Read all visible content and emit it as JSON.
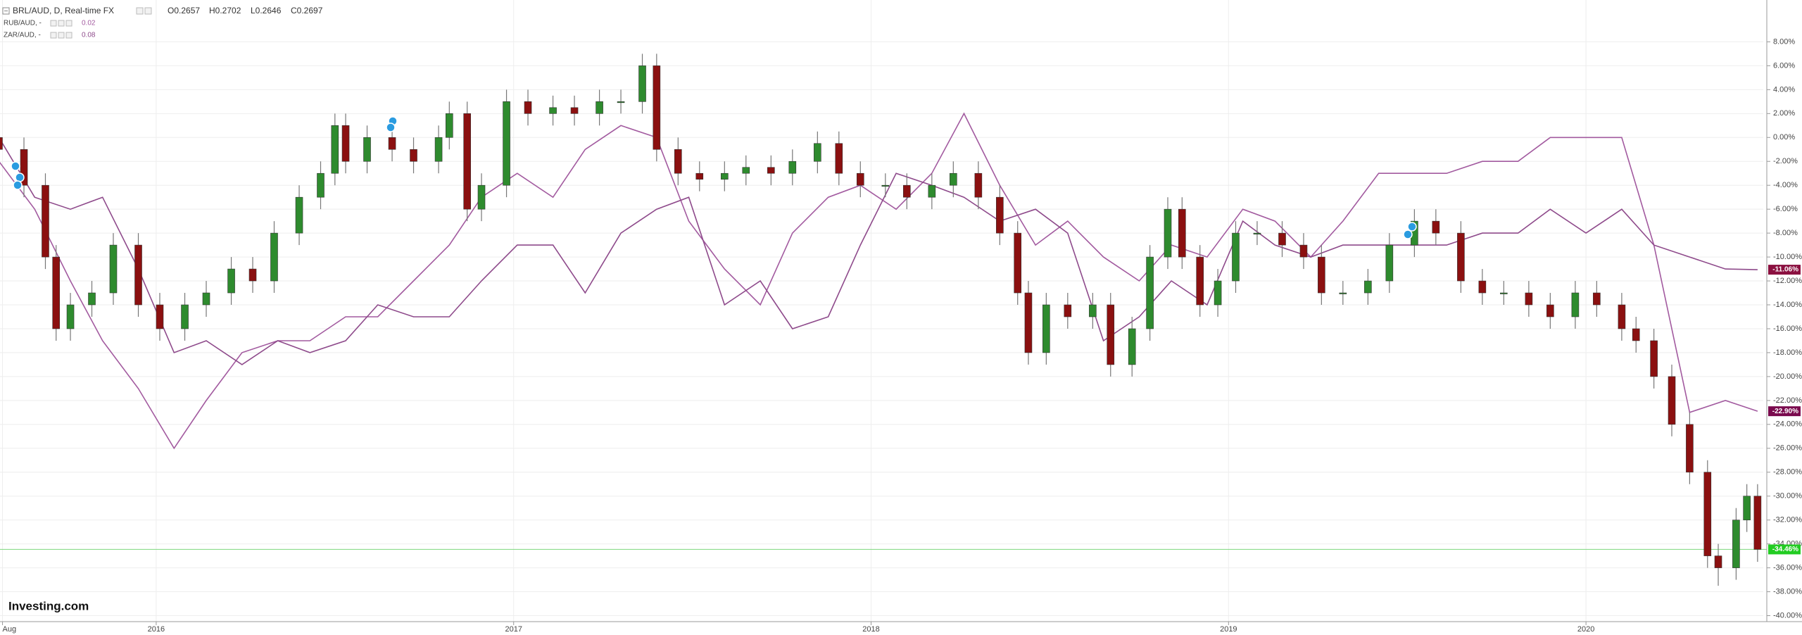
{
  "chart_data": {
    "type": "candlestick",
    "header": {
      "symbol": "BRL/AUD, D, Real-time FX",
      "ohlc": [
        "O0.2657",
        "H0.2702",
        "L0.2646",
        "C0.2697"
      ]
    },
    "brand": "Investing.com",
    "grid": true,
    "xlim": [
      2015.563,
      2020.496
    ],
    "xticks": [
      {
        "value": 2015.57,
        "label": "Aug"
      },
      2016,
      2017,
      2018,
      2019,
      2020
    ],
    "ylim": [
      -40.5,
      11.5
    ],
    "yticks": [
      {
        "value": 8,
        "label": "8.00%"
      },
      {
        "value": 6,
        "label": "6.00%"
      },
      {
        "value": 4,
        "label": "4.00%"
      },
      {
        "value": 2,
        "label": "2.00%"
      },
      {
        "value": 0,
        "label": "0.00%"
      },
      {
        "value": -2,
        "label": "-2.00%"
      },
      {
        "value": -4,
        "label": "-4.00%"
      },
      {
        "value": -6,
        "label": "-6.00%"
      },
      {
        "value": -8,
        "label": "-8.00%"
      },
      {
        "value": -10,
        "label": "-10.00%"
      },
      {
        "value": -12,
        "label": "-12.00%"
      },
      {
        "value": -14,
        "label": "-14.00%"
      },
      {
        "value": -16,
        "label": "-16.00%"
      },
      {
        "value": -18,
        "label": "-18.00%"
      },
      {
        "value": -20,
        "label": "-20.00%"
      },
      {
        "value": -22,
        "label": "-22.00%"
      },
      {
        "value": -24,
        "label": "-24.00%"
      },
      {
        "value": -26,
        "label": "-26.00%"
      },
      {
        "value": -28,
        "label": "-28.00%"
      },
      {
        "value": -30,
        "label": "-30.00%"
      },
      {
        "value": -32,
        "label": "-32.00%"
      },
      {
        "value": -34,
        "label": "-34.00%"
      },
      {
        "value": -36,
        "label": "-36.00%"
      },
      {
        "value": -38,
        "label": "-38.00%"
      },
      {
        "value": -40,
        "label": "-40.00%"
      }
    ],
    "candles": {
      "up_color": "#2e8b2e",
      "down_color": "#8b1010",
      "price_label": "-34.46%",
      "price_label_color": "#22cc22",
      "x": [
        2015.56,
        2015.63,
        2015.69,
        2015.72,
        2015.76,
        2015.82,
        2015.88,
        2015.95,
        2016.01,
        2016.08,
        2016.14,
        2016.21,
        2016.27,
        2016.33,
        2016.4,
        2016.46,
        2016.5,
        2016.53,
        2016.59,
        2016.66,
        2016.72,
        2016.79,
        2016.82,
        2016.87,
        2016.91,
        2016.98,
        2017.04,
        2017.11,
        2017.17,
        2017.24,
        2017.3,
        2017.36,
        2017.4,
        2017.46,
        2017.52,
        2017.59,
        2017.65,
        2017.72,
        2017.78,
        2017.85,
        2017.91,
        2017.97,
        2018.04,
        2018.1,
        2018.17,
        2018.23,
        2018.3,
        2018.36,
        2018.41,
        2018.44,
        2018.49,
        2018.55,
        2018.62,
        2018.67,
        2018.73,
        2018.78,
        2018.83,
        2018.87,
        2018.92,
        2018.97,
        2019.02,
        2019.08,
        2019.15,
        2019.21,
        2019.26,
        2019.32,
        2019.39,
        2019.45,
        2019.52,
        2019.58,
        2019.65,
        2019.71,
        2019.77,
        2019.84,
        2019.9,
        2019.97,
        2020.03,
        2020.1,
        2020.14,
        2020.19,
        2020.24,
        2020.29,
        2020.34,
        2020.37,
        2020.42,
        2020.45,
        2020.48
      ],
      "open": [
        0,
        -1,
        -4,
        -10,
        -16,
        -14,
        -13,
        -9,
        -14,
        -16,
        -14,
        -13,
        -11,
        -12,
        -8,
        -5,
        -3,
        1,
        -2,
        0,
        -1,
        -2,
        0,
        2,
        -6,
        -4,
        3,
        2,
        2.5,
        2,
        3,
        3,
        6,
        -1,
        -3,
        -3.5,
        -3,
        -2.5,
        -3,
        -2,
        -0.5,
        -3,
        -4,
        -4,
        -5,
        -4,
        -3,
        -5,
        -8,
        -13,
        -18,
        -14,
        -15,
        -14,
        -19,
        -16,
        -10,
        -6,
        -10,
        -14,
        -12,
        -8,
        -8,
        -9,
        -10,
        -13,
        -13,
        -12,
        -9,
        -7,
        -8,
        -12,
        -13,
        -13,
        -14,
        -15,
        -13,
        -14,
        -16,
        -17,
        -20,
        -24,
        -28,
        -35,
        -36,
        -32,
        -30
      ],
      "high": [
        1,
        0,
        -3,
        -9,
        -13,
        -12,
        -8,
        -8,
        -13,
        -13,
        -12,
        -10,
        -10,
        -7,
        -4,
        -2,
        2,
        2,
        1,
        1,
        0,
        1,
        3,
        3,
        -3,
        4,
        4,
        3.5,
        3.5,
        4,
        4,
        7,
        7,
        0,
        -2,
        -2,
        -1.5,
        -1.5,
        -1,
        0.5,
        0.5,
        -2,
        -3,
        -3,
        -3,
        -2,
        -2,
        -4,
        -7,
        -12,
        -13,
        -13,
        -13,
        -13,
        -15,
        -9,
        -5,
        -5,
        -9,
        -11,
        -7,
        -7,
        -7,
        -8,
        -9,
        -12,
        -11,
        -8,
        -6,
        -6,
        -7,
        -11,
        -12,
        -12,
        -13,
        -12,
        -12,
        -13,
        -15,
        -16,
        -19,
        -23,
        -27,
        -34,
        -31,
        -29,
        -29
      ],
      "low": [
        -2,
        -5,
        -11,
        -17,
        -17,
        -15,
        -14,
        -15,
        -17,
        -17,
        -15,
        -14,
        -13,
        -13,
        -9,
        -6,
        -4,
        -3,
        -3,
        -2,
        -3,
        -3,
        -1,
        -7,
        -7,
        -5,
        1,
        1,
        1,
        1,
        2,
        2,
        -2,
        -4,
        -4.5,
        -4.5,
        -4,
        -4,
        -4,
        -3,
        -4,
        -5,
        -5,
        -6,
        -6,
        -5,
        -6,
        -9,
        -14,
        -19,
        -19,
        -16,
        -16,
        -20,
        -20,
        -17,
        -11,
        -11,
        -15,
        -15,
        -13,
        -9,
        -10,
        -11,
        -14,
        -14,
        -14,
        -13,
        -10,
        -9,
        -13,
        -14,
        -14,
        -15,
        -16,
        -16,
        -15,
        -17,
        -18,
        -21,
        -25,
        -29,
        -36,
        -37.5,
        -37,
        -33,
        -35.5
      ],
      "close": [
        -1,
        -4,
        -10,
        -16,
        -14,
        -13,
        -9,
        -14,
        -16,
        -14,
        -13,
        -11,
        -12,
        -8,
        -5,
        -3,
        1,
        -2,
        0,
        -1,
        -2,
        0,
        2,
        -6,
        -4,
        3,
        2,
        2.5,
        2,
        3,
        3,
        6,
        -1,
        -3,
        -3.5,
        -3,
        -2.5,
        -3,
        -2,
        -0.5,
        -3,
        -4,
        -4,
        -5,
        -4,
        -3,
        -5,
        -8,
        -13,
        -18,
        -14,
        -15,
        -14,
        -19,
        -16,
        -10,
        -6,
        -10,
        -14,
        -12,
        -8,
        -8,
        -9,
        -10,
        -13,
        -13,
        -12,
        -9,
        -7,
        -8,
        -12,
        -13,
        -13,
        -14,
        -15,
        -13,
        -14,
        -16,
        -17,
        -20,
        -24,
        -28,
        -35,
        -36,
        -32,
        -30,
        -34.46
      ]
    },
    "series": [
      {
        "name": "RUB/AUD, -",
        "type": "line",
        "color": "#a25a9f",
        "legend_value": "0.02",
        "price_label": "-22.90%",
        "price_label_color": "#7a0a4e",
        "x": [
          2015.56,
          2015.66,
          2015.76,
          2015.85,
          2015.95,
          2016.05,
          2016.14,
          2016.24,
          2016.34,
          2016.43,
          2016.53,
          2016.62,
          2016.72,
          2016.82,
          2016.91,
          2017.01,
          2017.11,
          2017.2,
          2017.3,
          2017.4,
          2017.49,
          2017.59,
          2017.69,
          2017.78,
          2017.88,
          2017.97,
          2018.07,
          2018.17,
          2018.26,
          2018.36,
          2018.46,
          2018.55,
          2018.65,
          2018.75,
          2018.84,
          2018.94,
          2019.04,
          2019.13,
          2019.23,
          2019.32,
          2019.42,
          2019.52,
          2019.61,
          2019.71,
          2019.81,
          2019.9,
          2020.0,
          2020.1,
          2020.19,
          2020.29,
          2020.39,
          2020.48
        ],
        "values": [
          -2,
          -6,
          -12,
          -17,
          -21,
          -26,
          -22,
          -18,
          -17,
          -17,
          -15,
          -15,
          -12,
          -9,
          -5,
          -3,
          -5,
          -1,
          1,
          0,
          -7,
          -11,
          -14,
          -8,
          -5,
          -4,
          -6,
          -3,
          2,
          -4,
          -9,
          -7,
          -10,
          -12,
          -9,
          -10,
          -6,
          -7,
          -10,
          -7,
          -3,
          -3,
          -3,
          -2,
          -2,
          0,
          0,
          0,
          -9,
          -23,
          -22,
          -22.9
        ]
      },
      {
        "name": "ZAR/AUD, -",
        "type": "line",
        "color": "#8e4a8b",
        "legend_value": "0.08",
        "price_label": "-11.06%",
        "price_label_color": "#8b1040",
        "x": [
          2015.56,
          2015.66,
          2015.76,
          2015.85,
          2015.95,
          2016.05,
          2016.14,
          2016.24,
          2016.34,
          2016.43,
          2016.53,
          2016.62,
          2016.72,
          2016.82,
          2016.91,
          2017.01,
          2017.11,
          2017.2,
          2017.3,
          2017.4,
          2017.49,
          2017.59,
          2017.69,
          2017.78,
          2017.88,
          2017.97,
          2018.07,
          2018.17,
          2018.26,
          2018.36,
          2018.46,
          2018.55,
          2018.65,
          2018.75,
          2018.84,
          2018.94,
          2019.04,
          2019.13,
          2019.23,
          2019.32,
          2019.42,
          2019.52,
          2019.61,
          2019.71,
          2019.81,
          2019.9,
          2020.0,
          2020.1,
          2020.19,
          2020.29,
          2020.39,
          2020.48
        ],
        "values": [
          0,
          -5,
          -6,
          -5,
          -11,
          -18,
          -17,
          -19,
          -17,
          -18,
          -17,
          -14,
          -15,
          -15,
          -12,
          -9,
          -9,
          -13,
          -8,
          -6,
          -5,
          -14,
          -12,
          -16,
          -15,
          -9,
          -3,
          -4,
          -5,
          -7,
          -6,
          -8,
          -17,
          -15,
          -12,
          -14,
          -7,
          -9,
          -10,
          -9,
          -9,
          -9,
          -9,
          -8,
          -8,
          -6,
          -8,
          -6,
          -9,
          -10,
          -11,
          -11.06
        ]
      }
    ]
  }
}
